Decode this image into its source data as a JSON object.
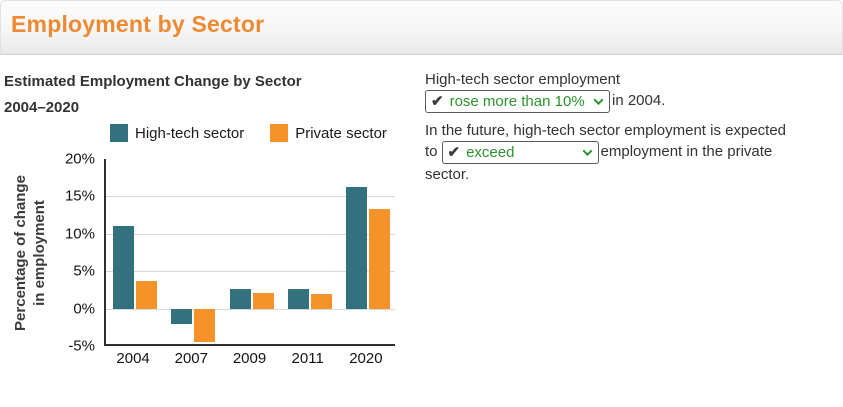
{
  "header": {
    "title": "Employment by Sector"
  },
  "chart": {
    "title_line1": "Estimated Employment Change by Sector",
    "title_line2": "2004–2020",
    "ylabel_line1": "Percentage of change",
    "ylabel_line2": "in employment"
  },
  "chart_data": {
    "type": "bar",
    "categories": [
      "2004",
      "2007",
      "2009",
      "2011",
      "2020"
    ],
    "series": [
      {
        "name": "High-tech sector",
        "color": "#33717e",
        "values": [
          11,
          -2,
          2.6,
          2.6,
          16.2
        ]
      },
      {
        "name": "Private sector",
        "color": "#f5932a",
        "values": [
          3.7,
          -4.5,
          2.1,
          1.9,
          13.3
        ]
      }
    ],
    "title": "Estimated Employment Change by Sector 2004–2020",
    "xlabel": "",
    "ylabel": "Percentage of change in employment",
    "ylim": [
      -5,
      20
    ],
    "ytick_step": 5,
    "ytick_suffix": "%",
    "grid": true,
    "legend_position": "top"
  },
  "question": {
    "sentence1_line1": "High-tech sector employment",
    "dropdown1_value": "rose more than 10%",
    "sentence1_after": "in 2004.",
    "sentence2_line1": "In the future, high-tech sector employment is expected",
    "sentence2_to": "to",
    "dropdown2_value": "exceed",
    "sentence2_after": "employment in the private",
    "sentence2_line3": "sector.",
    "checkmark": "✔"
  },
  "colors": {
    "accent_orange": "#ee8a33",
    "dropdown_green": "#2c942c",
    "bar_teal": "#33717e",
    "bar_orange": "#f5932a",
    "gridline": "#d9d9d9"
  }
}
